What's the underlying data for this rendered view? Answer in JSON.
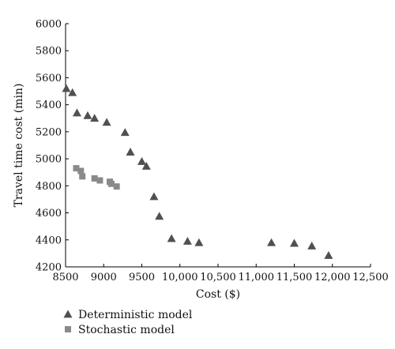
{
  "chart_data": {
    "type": "scatter",
    "xlabel": "Cost ($)",
    "ylabel": "Travel time cost (min)",
    "xlim": [
      8500,
      12500
    ],
    "ylim": [
      4200,
      6000
    ],
    "xticks": [
      8500,
      9000,
      9500,
      10000,
      10500,
      11000,
      11500,
      12000,
      12500
    ],
    "xtick_labels": [
      "8500",
      "9000",
      "9500",
      "10,000",
      "10,500",
      "11,000",
      "11,500",
      "12,000",
      "12,500"
    ],
    "yticks": [
      4200,
      4400,
      4600,
      4800,
      5000,
      5200,
      5400,
      5600,
      5800,
      6000
    ],
    "ytick_labels": [
      "4200",
      "4400",
      "4600",
      "4800",
      "5000",
      "5200",
      "5400",
      "5600",
      "5800",
      "6000"
    ],
    "legend_position": "bottom-left",
    "series": [
      {
        "name": "Deterministic model",
        "marker": "triangle",
        "color": "#505050",
        "x": [
          8510,
          8590,
          8650,
          8790,
          8880,
          9040,
          9280,
          9350,
          9500,
          9560,
          9660,
          9730,
          9890,
          10100,
          10250,
          11200,
          11500,
          11730,
          11950
        ],
        "y": [
          5520,
          5490,
          5340,
          5320,
          5300,
          5270,
          5195,
          5050,
          4980,
          4945,
          4720,
          4575,
          4410,
          4390,
          4380,
          4380,
          4375,
          4355,
          4285
        ]
      },
      {
        "name": "Stochastic model",
        "marker": "square",
        "color": "#8a8a8a",
        "x": [
          8640,
          8700,
          8720,
          8880,
          8950,
          9080,
          9100,
          9170
        ],
        "y": [
          4930,
          4910,
          4870,
          4855,
          4840,
          4830,
          4815,
          4795
        ]
      }
    ]
  }
}
